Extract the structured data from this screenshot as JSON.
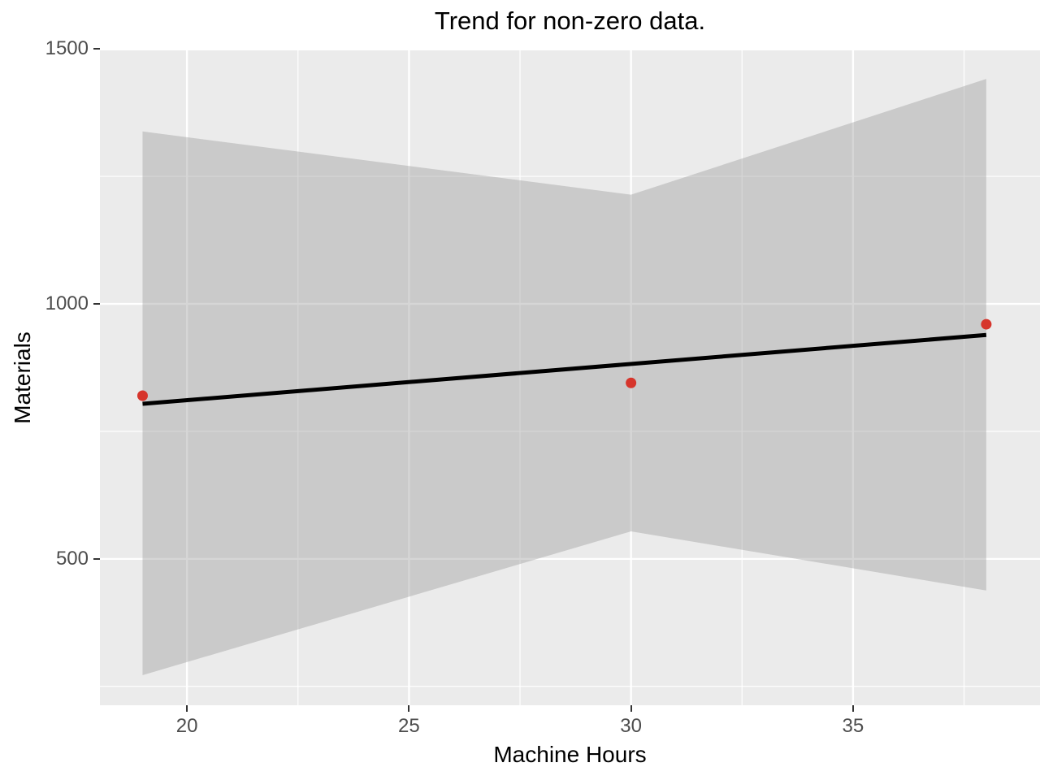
{
  "chart_data": {
    "type": "scatter",
    "title": "Trend for non-zero data.",
    "xlabel": "Machine Hours",
    "ylabel": "Materials",
    "xlim": [
      18.04,
      39.21
    ],
    "ylim": [
      213,
      1497
    ],
    "x_ticks": [
      20,
      25,
      30,
      35
    ],
    "x_minor_ticks": [
      22.5,
      27.5,
      32.5,
      37.5
    ],
    "y_ticks": [
      500,
      1000,
      1500
    ],
    "y_minor_ticks": [
      250,
      750,
      1250
    ],
    "grid": "on",
    "legend": "none",
    "points": {
      "name": "observed-data",
      "x": [
        19,
        30,
        38
      ],
      "y": [
        820,
        845,
        960
      ]
    },
    "trend_line": {
      "name": "linear-fit",
      "x": [
        19,
        38
      ],
      "y": [
        804,
        939
      ]
    },
    "confidence_band": {
      "name": "confidence-interval",
      "x": [
        19,
        30,
        38
      ],
      "upper": [
        1338,
        1214,
        1441
      ],
      "lower": [
        272,
        554,
        438
      ]
    },
    "colors": {
      "panel_bg": "#EBEBEB",
      "grid_major": "#FFFFFF",
      "grid_minor": "#FFFFFF",
      "band": "rgba(153,153,153,0.4)",
      "trend": "#000000",
      "point": "#D6352C",
      "tick_label": "#4D4D4D",
      "tick_mark": "#333333",
      "text": "#000000"
    }
  }
}
